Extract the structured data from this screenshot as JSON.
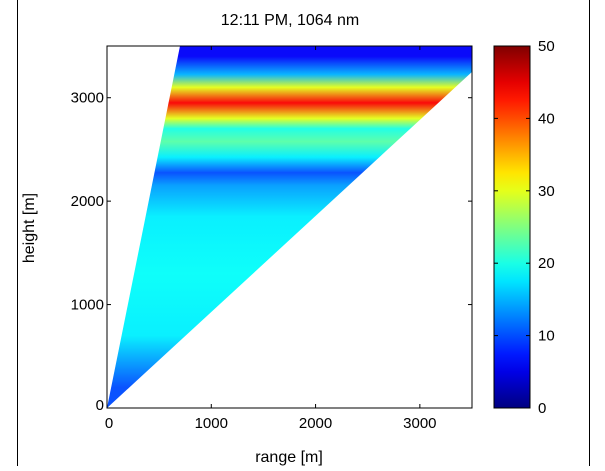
{
  "chart_data": {
    "type": "heatmap",
    "title": "12:11 PM, 1064 nm",
    "xlabel": "range [m]",
    "ylabel": "height [m]",
    "xlim": [
      0,
      3500
    ],
    "ylim": [
      0,
      3500
    ],
    "x_ticks": [
      0,
      1000,
      2000,
      3000
    ],
    "y_ticks": [
      0,
      1000,
      2000,
      3000
    ],
    "colorbar": {
      "min": 0,
      "max": 50,
      "ticks": [
        0,
        10,
        20,
        30,
        40,
        50
      ],
      "colormap": "jet"
    },
    "scan_sector": {
      "left_edge": [
        [
          0,
          0
        ],
        [
          700,
          3500
        ]
      ],
      "right_edge": [
        [
          0,
          0
        ],
        [
          3500,
          3250
        ]
      ]
    },
    "layers": [
      {
        "height_from": 0,
        "height_to": 400,
        "value": 10
      },
      {
        "height_from": 400,
        "height_to": 1000,
        "value": 18
      },
      {
        "height_from": 1000,
        "height_to": 1600,
        "value": 19
      },
      {
        "height_from": 1600,
        "height_to": 2100,
        "value": 18
      },
      {
        "height_from": 2100,
        "height_to": 2200,
        "value": 14
      },
      {
        "height_from": 2200,
        "height_to": 2350,
        "value": 10
      },
      {
        "height_from": 2350,
        "height_to": 2500,
        "value": 18
      },
      {
        "height_from": 2500,
        "height_to": 2650,
        "value": 23
      },
      {
        "height_from": 2650,
        "height_to": 2750,
        "value": 20
      },
      {
        "height_from": 2750,
        "height_to": 2850,
        "value": 30
      },
      {
        "height_from": 2850,
        "height_to": 3050,
        "value": 44
      },
      {
        "height_from": 3050,
        "height_to": 3150,
        "value": 30
      },
      {
        "height_from": 3150,
        "height_to": 3300,
        "value": 15
      },
      {
        "height_from": 3300,
        "height_to": 3500,
        "value": 6
      }
    ]
  }
}
